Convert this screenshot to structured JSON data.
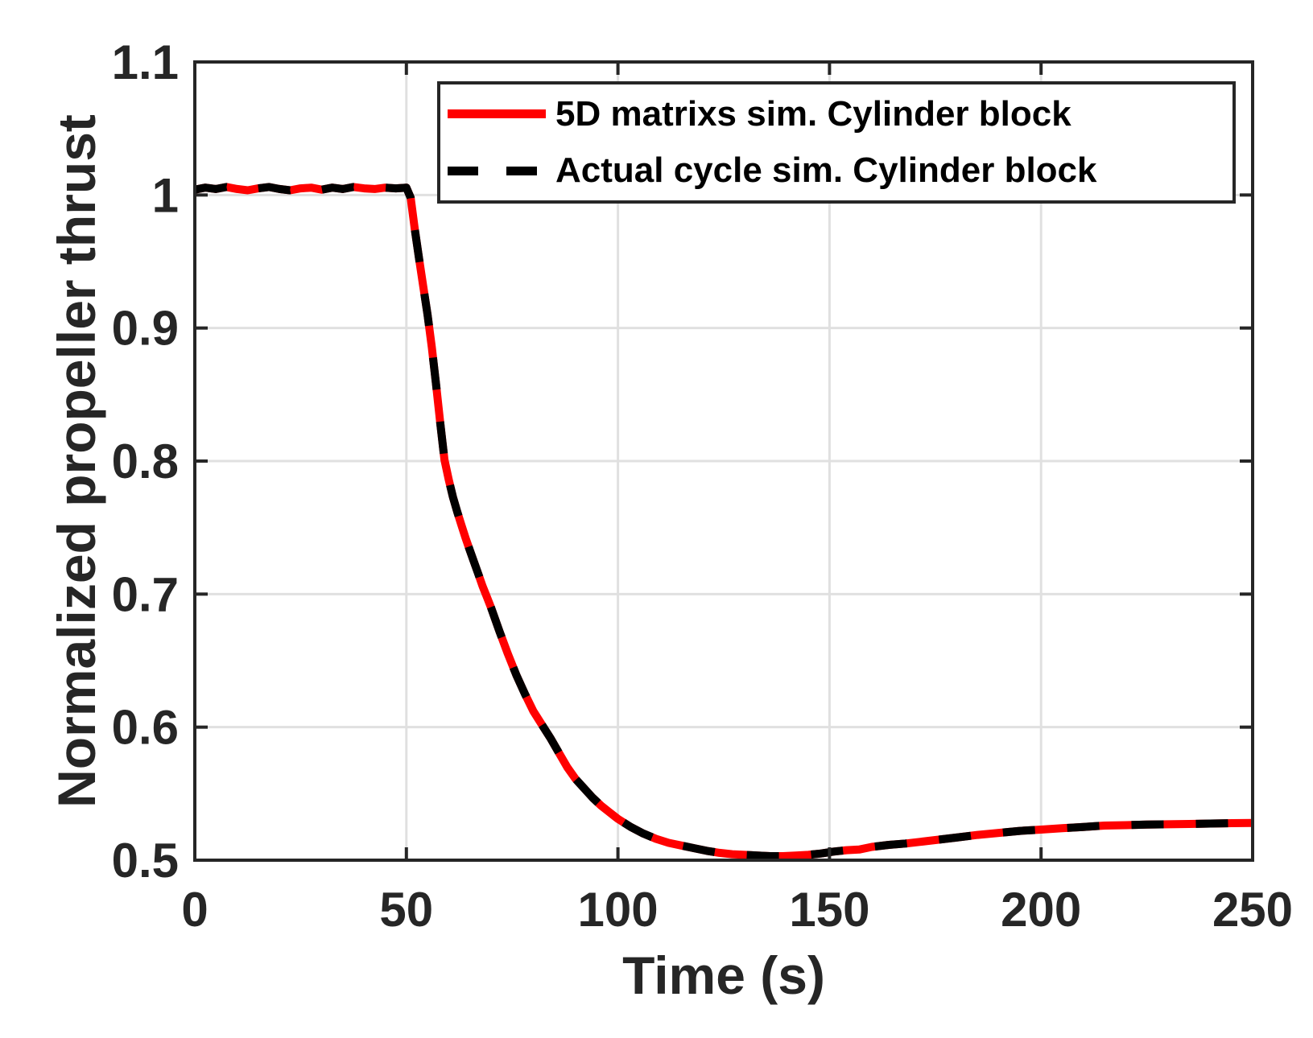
{
  "figure": {
    "background": "#ffffff",
    "axis_color": "#262626",
    "grid_color": "#e0e0e0",
    "series_red": "#ff0000",
    "series_black": "#000000"
  },
  "chart_data": {
    "type": "line",
    "title": "",
    "xlabel": "Time (s)",
    "ylabel": "Normalized propeller thrust",
    "xlim": [
      0,
      250
    ],
    "ylim": [
      0.5,
      1.1
    ],
    "xticks": [
      0,
      50,
      100,
      150,
      200,
      250
    ],
    "yticks": [
      0.5,
      0.6,
      0.7,
      0.8,
      0.9,
      1,
      1.1
    ],
    "grid": true,
    "legend_position": "top-right-inside",
    "description": "Both curves overlap almost exactly: constant ~1.005 until t=50 s, steep drop after the step at t=50 s, minimum ~0.503 near t=135-140 s, then slow recovery to ~0.528 at t=250 s.",
    "series": [
      {
        "name": "5D matrixs sim. Cylinder block",
        "color": "#ff0000",
        "line_style": "solid",
        "line_width": 10,
        "points": [
          [
            0,
            1.004
          ],
          [
            2.5,
            1.0055
          ],
          [
            5,
            1.0045
          ],
          [
            7.5,
            1.006
          ],
          [
            10,
            1.0045
          ],
          [
            12.5,
            1.0035
          ],
          [
            15,
            1.005
          ],
          [
            17.5,
            1.006
          ],
          [
            20,
            1.0045
          ],
          [
            22.5,
            1.0035
          ],
          [
            25,
            1.005
          ],
          [
            27.5,
            1.0055
          ],
          [
            30,
            1.004
          ],
          [
            32.5,
            1.0055
          ],
          [
            35,
            1.0045
          ],
          [
            37.5,
            1.006
          ],
          [
            40,
            1.005
          ],
          [
            42.5,
            1.0045
          ],
          [
            45,
            1.0055
          ],
          [
            47.5,
            1.005
          ],
          [
            50,
            1.0055
          ],
          [
            51,
            0.998
          ],
          [
            52,
            0.974
          ],
          [
            53,
            0.952
          ],
          [
            54,
            0.931
          ],
          [
            55,
            0.91
          ],
          [
            56,
            0.886
          ],
          [
            57,
            0.858
          ],
          [
            58,
            0.829
          ],
          [
            59,
            0.801
          ],
          [
            60,
            0.786
          ],
          [
            61,
            0.773
          ],
          [
            62,
            0.762
          ],
          [
            63,
            0.752
          ],
          [
            64,
            0.742
          ],
          [
            65,
            0.733
          ],
          [
            66,
            0.724
          ],
          [
            67,
            0.715
          ],
          [
            68,
            0.706
          ],
          [
            69,
            0.698
          ],
          [
            70,
            0.69
          ],
          [
            72,
            0.672
          ],
          [
            74,
            0.655
          ],
          [
            76,
            0.639
          ],
          [
            78,
            0.625
          ],
          [
            80,
            0.612
          ],
          [
            82,
            0.602
          ],
          [
            84,
            0.592
          ],
          [
            86,
            0.581
          ],
          [
            88,
            0.57
          ],
          [
            90,
            0.561
          ],
          [
            92,
            0.554
          ],
          [
            94,
            0.547
          ],
          [
            96,
            0.541
          ],
          [
            98,
            0.536
          ],
          [
            100,
            0.531
          ],
          [
            103,
            0.525
          ],
          [
            106,
            0.52
          ],
          [
            109,
            0.516
          ],
          [
            112,
            0.513
          ],
          [
            115,
            0.511
          ],
          [
            118,
            0.509
          ],
          [
            121,
            0.507
          ],
          [
            124,
            0.5055
          ],
          [
            127,
            0.5045
          ],
          [
            130,
            0.504
          ],
          [
            133,
            0.5035
          ],
          [
            136,
            0.503
          ],
          [
            139,
            0.503
          ],
          [
            142,
            0.5035
          ],
          [
            145,
            0.504
          ],
          [
            148,
            0.505
          ],
          [
            151,
            0.5065
          ],
          [
            154,
            0.5075
          ],
          [
            157,
            0.508
          ],
          [
            160,
            0.51
          ],
          [
            164,
            0.5115
          ],
          [
            168,
            0.5125
          ],
          [
            172,
            0.514
          ],
          [
            176,
            0.5155
          ],
          [
            180,
            0.517
          ],
          [
            185,
            0.519
          ],
          [
            190,
            0.5205
          ],
          [
            195,
            0.522
          ],
          [
            200,
            0.523
          ],
          [
            205,
            0.524
          ],
          [
            210,
            0.525
          ],
          [
            215,
            0.526
          ],
          [
            220,
            0.5263
          ],
          [
            225,
            0.5268
          ],
          [
            230,
            0.527
          ],
          [
            235,
            0.5272
          ],
          [
            240,
            0.5275
          ],
          [
            245,
            0.5278
          ],
          [
            250,
            0.528
          ]
        ]
      },
      {
        "name": "Actual cycle sim. Cylinder block",
        "color": "#000000",
        "line_style": "dashed",
        "line_width": 10,
        "points": "identical-to-first-series (curves coincide in the plot)"
      }
    ]
  }
}
